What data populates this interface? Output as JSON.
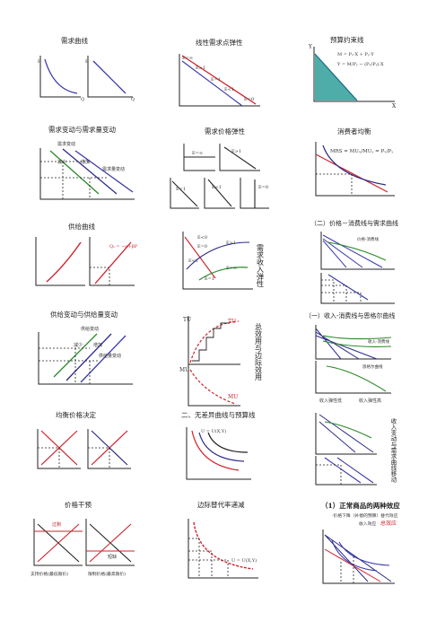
{
  "panels": {
    "p1": {
      "title": "需求曲线"
    },
    "p2": {
      "title": "线性需求点弹性",
      "e_inf": "E=∞",
      "e_gt1": "E>1",
      "e_eq1": "E=1",
      "e_lt1": "E<1",
      "e_zero": "E=0"
    },
    "p3": {
      "title": "预算约束线",
      "formula1": "M = Pₓ·X + Pᵧ·Y",
      "formula2": "Y = M/Pᵧ − (Pₓ/Pᵧ)·X"
    },
    "p4": {
      "title": "需求变动与需求量变动",
      "demand_change": "需求变动",
      "decrease": "减少",
      "increase": "增加",
      "qty_change": "需求量变动"
    },
    "p5": {
      "title": "需求价格弹性",
      "e_inf": "E=∞",
      "e_gt1": "E>1",
      "e_lt1": "E<1",
      "e_eq1": "E=1",
      "e_zero": "E=0"
    },
    "p6": {
      "title": "消费者均衡",
      "formula": "MRS = MUₓ/MUᵧ = Pₓ/Pᵧ"
    },
    "p7": {
      "title": "供给曲线",
      "s_label": "Qₛ = −α+βP"
    },
    "p8": {
      "title": "需求收入弹性",
      "e_lt0": "E<0",
      "e_eq0": "E=0",
      "e_gt1": "E>1",
      "e_lt1": "E<1",
      "e_inf": "E=∞",
      "e_eq1": "E=1"
    },
    "p9": {
      "title": "（二）价格－消费线与需求曲线",
      "pcc": "价格-消费线"
    },
    "p10": {
      "title": "供给变动与供给量变动",
      "supply_change": "供给变动",
      "decrease": "减少",
      "increase": "增加",
      "qty_change": "供给量变动"
    },
    "p11": {
      "title": "总效用与边际效用",
      "tu": "TU",
      "mu": "MU"
    },
    "p12": {
      "title": "（一）收入-消费线与恩格尔曲线",
      "icc": "收入-消费线",
      "engel": "恩格尔曲线",
      "normal": "收入弹性低",
      "luxury": "收入弹性高"
    },
    "p13": {
      "title": "均衡价格决定"
    },
    "p14": {
      "title": "二、无差异曲线与预算线",
      "u_formula": "U = U(X,Y)"
    },
    "p15": {
      "title": "收入变动与需求曲线移动"
    },
    "p16": {
      "title": "价格干预",
      "surplus": "过剩",
      "shortage": "短缺",
      "support": "支持价格(最低限价)",
      "ceiling": "限制价格(最高限价)"
    },
    "p17": {
      "title": "边际替代率递减",
      "u_formula": "U = U(X,Y)"
    },
    "p18": {
      "title": "（1）正常商品的两种效应",
      "line1": "·价格下降（补偿的预算）替代效应",
      "income": "收入效应",
      "total": "总效应"
    }
  }
}
